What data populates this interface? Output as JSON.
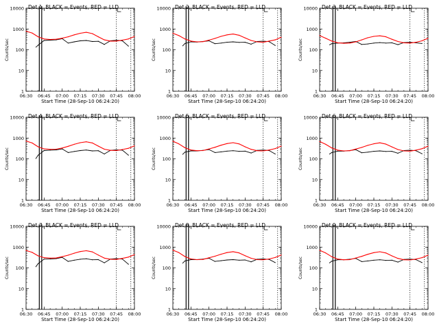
{
  "figure": {
    "colors": {
      "events": "#000000",
      "lld": "#ff0000",
      "axes": "#000000",
      "background": "#ffffff"
    }
  },
  "chart_data": {
    "type": "line",
    "grid": "none",
    "y_scale": "log",
    "ylim": [
      1,
      10000
    ],
    "xlim": [
      "06:30",
      "08:00"
    ],
    "ylabel": "Counts/sec",
    "xlabel": "Start Time (28-Sep-10 06:24:20)",
    "x_ticks": [
      "06:30",
      "06:45",
      "07:00",
      "07:15",
      "07:30",
      "07:45",
      "08:00"
    ],
    "y_ticks": [
      "1",
      "10",
      "100",
      "1000",
      "10000"
    ],
    "markers": {
      "solid_vertical": [
        "06:41",
        "06:43"
      ],
      "dotted_vertical": [
        "07:45",
        "07:57"
      ],
      "top_mark": "07:46"
    },
    "time_grid": [
      "06:30",
      "06:35",
      "06:40",
      "06:45",
      "06:50",
      "06:55",
      "07:00",
      "07:05",
      "07:10",
      "07:15",
      "07:20",
      "07:25",
      "07:30",
      "07:35",
      "07:40",
      "07:45",
      "07:50",
      "07:55",
      "08:00"
    ],
    "panels": [
      {
        "title": "Det 1, BLACK = Events, RED = LLD",
        "series": [
          {
            "name": "Events",
            "start": "06:38",
            "values": [
              130,
              110,
              165,
              280,
              290,
              300,
              340,
              210,
              240,
              270,
              280,
              250,
              255,
              180,
              270,
              285,
              270,
              150,
              null
            ]
          },
          {
            "name": "LLD",
            "values": [
              780,
              640,
              420,
              330,
              310,
              320,
              360,
              420,
              520,
              620,
              690,
              600,
              420,
              300,
              260,
              260,
              290,
              330,
              430
            ]
          }
        ]
      },
      {
        "title": "Det 2, BLACK = Events, RED = LLD",
        "series": [
          {
            "name": "Events",
            "start": "06:38",
            "values": [
              150,
              140,
              200,
              240,
              235,
              250,
              270,
              195,
              210,
              230,
              240,
              225,
              230,
              185,
              250,
              260,
              245,
              160,
              null
            ]
          },
          {
            "name": "LLD",
            "values": [
              620,
              480,
              330,
              260,
              240,
              245,
              290,
              350,
              440,
              520,
              570,
              500,
              370,
              280,
              240,
              230,
              260,
              300,
              400
            ]
          }
        ]
      },
      {
        "title": "Det 3, BLACK = Events, RED = LLD",
        "series": [
          {
            "name": "Events",
            "start": "06:38",
            "values": [
              170,
              165,
              195,
              210,
              215,
              230,
              250,
              180,
              190,
              210,
              220,
              210,
              215,
              175,
              220,
              230,
              215,
              200,
              null
            ]
          },
          {
            "name": "LLD",
            "values": [
              480,
              360,
              260,
              215,
              205,
              210,
              240,
              300,
              380,
              440,
              470,
              420,
              320,
              250,
              215,
              210,
              230,
              270,
              360
            ]
          }
        ]
      },
      {
        "title": "Det 4, BLACK = Events, RED = LLD",
        "series": [
          {
            "name": "Events",
            "start": "06:38",
            "values": [
              100,
              95,
              150,
              250,
              260,
              270,
              300,
              200,
              225,
              250,
              265,
              240,
              245,
              170,
              255,
              270,
              260,
              150,
              null
            ]
          },
          {
            "name": "LLD",
            "values": [
              720,
              580,
              380,
              300,
              285,
              290,
              330,
              400,
              500,
              600,
              660,
              580,
              410,
              290,
              255,
              250,
              280,
              320,
              420
            ]
          }
        ]
      },
      {
        "title": "Det 5, BLACK = Events, RED = LLD",
        "series": [
          {
            "name": "Events",
            "start": "06:38",
            "values": [
              160,
              150,
              210,
              240,
              240,
              255,
              280,
              200,
              215,
              235,
              245,
              230,
              235,
              190,
              255,
              265,
              250,
              170,
              null
            ]
          },
          {
            "name": "LLD",
            "values": [
              700,
              520,
              340,
              265,
              245,
              250,
              300,
              360,
              450,
              540,
              600,
              520,
              380,
              285,
              245,
              240,
              265,
              310,
              410
            ]
          }
        ]
      },
      {
        "title": "Det 6, BLACK = Events, RED = LLD",
        "series": [
          {
            "name": "Events",
            "start": "06:38",
            "values": [
              165,
              155,
              200,
              235,
              235,
              250,
              275,
              195,
              210,
              230,
              240,
              225,
              230,
              185,
              250,
              260,
              245,
              175,
              null
            ]
          },
          {
            "name": "LLD",
            "values": [
              680,
              500,
              335,
              260,
              240,
              245,
              295,
              355,
              445,
              530,
              590,
              510,
              375,
              280,
              240,
              235,
              260,
              305,
              405
            ]
          }
        ]
      },
      {
        "title": "Det 7, BLACK = Events, RED = LLD",
        "series": [
          {
            "name": "Events",
            "start": "06:38",
            "values": [
              110,
              100,
              160,
              265,
              270,
              280,
              320,
              205,
              235,
              260,
              275,
              245,
              250,
              175,
              265,
              280,
              265,
              150,
              null
            ]
          },
          {
            "name": "LLD",
            "values": [
              690,
              560,
              380,
              310,
              295,
              300,
              345,
              410,
              510,
              610,
              670,
              590,
              415,
              295,
              260,
              255,
              285,
              330,
              430
            ]
          }
        ]
      },
      {
        "title": "Det 8, BLACK = Events, RED = LLD",
        "series": [
          {
            "name": "Events",
            "start": "06:38",
            "values": [
              165,
              155,
              215,
              250,
              250,
              265,
              290,
              205,
              220,
              240,
              250,
              235,
              240,
              195,
              260,
              270,
              255,
              180,
              null
            ]
          },
          {
            "name": "LLD",
            "values": [
              720,
              540,
              350,
              270,
              250,
              255,
              305,
              365,
              455,
              545,
              605,
              525,
              385,
              290,
              250,
              245,
              270,
              315,
              415
            ]
          }
        ]
      },
      {
        "title": "Det 9, BLACK = Events, RED = LLD",
        "series": [
          {
            "name": "Events",
            "start": "06:38",
            "values": [
              170,
              160,
              210,
              245,
              245,
              260,
              285,
              200,
              215,
              235,
              245,
              230,
              235,
              190,
              255,
              265,
              250,
              180,
              null
            ]
          },
          {
            "name": "LLD",
            "values": [
              700,
              520,
              345,
              265,
              245,
              250,
              300,
              360,
              450,
              540,
              600,
              520,
              380,
              285,
              245,
              240,
              265,
              310,
              410
            ]
          }
        ]
      }
    ]
  }
}
